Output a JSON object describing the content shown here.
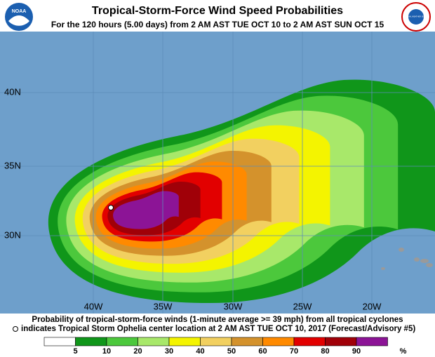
{
  "header": {
    "title": "Tropical-Storm-Force Wind Speed Probabilities",
    "subtitle": "For the 120 hours (5.00 days) from 2 AM AST TUE OCT 10 to 2 AM AST SUN OCT 15"
  },
  "logos": {
    "left": "NOAA",
    "right": "NATIONAL WEATHER SERVICE"
  },
  "map": {
    "lat_labels": [
      "40N",
      "35N",
      "30N"
    ],
    "lon_labels": [
      "40W",
      "35W",
      "30W",
      "25W",
      "20W"
    ]
  },
  "caption": {
    "line1": "Probability of tropical-storm-force winds (1-minute average >= 39 mph) from all tropical cyclones",
    "line2": "indicates Tropical Storm Ophelia center location at 2 AM AST TUE OCT 10, 2017 (Forecast/Advisory #5)"
  },
  "legend": {
    "labels": [
      5,
      10,
      20,
      30,
      40,
      50,
      60,
      70,
      80,
      90
    ],
    "unit": "%",
    "colors": [
      "#ffffff",
      "#10961a",
      "#4cc83c",
      "#a8e86a",
      "#f4f400",
      "#f2d060",
      "#d4922c",
      "#ff8a00",
      "#e20000",
      "#a00008",
      "#8c1496"
    ]
  }
}
